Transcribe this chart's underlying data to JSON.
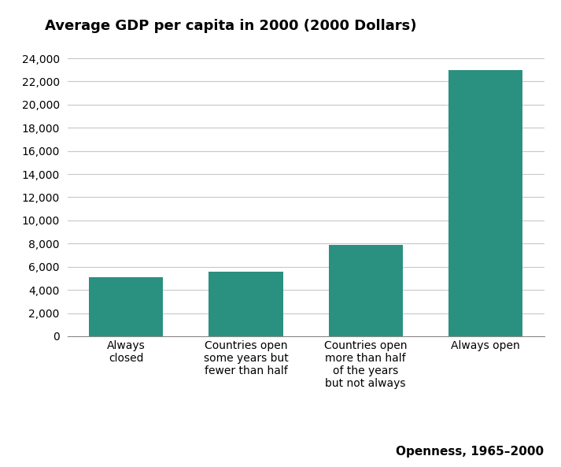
{
  "title": "Average GDP per capita in 2000 (2000 Dollars)",
  "categories": [
    "Always\nclosed",
    "Countries open\nsome years but\nfewer than half",
    "Countries open\nmore than half\nof the years\nbut not always",
    "Always open"
  ],
  "values": [
    5100,
    5550,
    7900,
    23000
  ],
  "bar_color": "#2a9080",
  "ylim": [
    0,
    25000
  ],
  "yticks": [
    0,
    2000,
    4000,
    6000,
    8000,
    10000,
    12000,
    14000,
    16000,
    18000,
    20000,
    22000,
    24000
  ],
  "xlabel_note": "Openness, 1965–2000",
  "background_color": "#ffffff",
  "title_fontsize": 13,
  "tick_fontsize": 10,
  "note_fontsize": 11
}
